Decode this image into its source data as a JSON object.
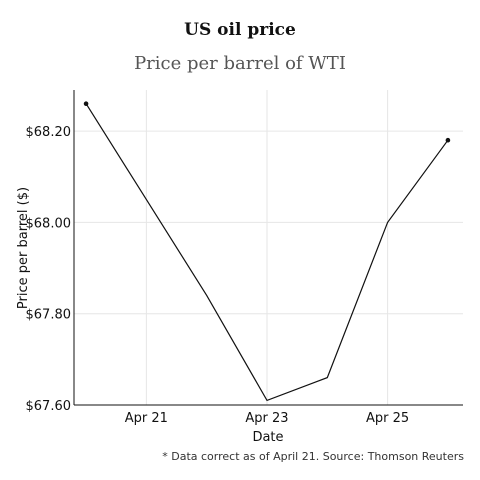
{
  "chart_data": {
    "type": "line",
    "title": "US oil price",
    "subtitle": "Price per barrel of WTI",
    "xlabel": "Date",
    "ylabel": "Price per barrel ($)",
    "footnote": "* Data correct as of April 21. Source: Thomson Reuters",
    "x": [
      "Apr 20",
      "Apr 21",
      "Apr 22",
      "Apr 23",
      "Apr 24",
      "Apr 25",
      "Apr 26"
    ],
    "series": [
      {
        "values": [
          68.26,
          68.05,
          67.84,
          67.61,
          67.66,
          68.0,
          68.18
        ]
      }
    ],
    "endpoint_markers": true,
    "xlim": [
      "Apr 19.8",
      "Apr 26.25"
    ],
    "xticks": [
      {
        "value": "Apr 21",
        "label": "Apr 21"
      },
      {
        "value": "Apr 23",
        "label": "Apr 23"
      },
      {
        "value": "Apr 25",
        "label": "Apr 25"
      }
    ],
    "ylim": [
      67.6,
      68.29
    ],
    "yticks": [
      {
        "value": 67.6,
        "label": "$67.60"
      },
      {
        "value": 67.8,
        "label": "$67.80"
      },
      {
        "value": 68.0,
        "label": "$68.00"
      },
      {
        "value": 68.2,
        "label": "$68.20"
      }
    ],
    "grid": true,
    "line_color": "#111111",
    "grid_color": "#e6e6e6"
  }
}
